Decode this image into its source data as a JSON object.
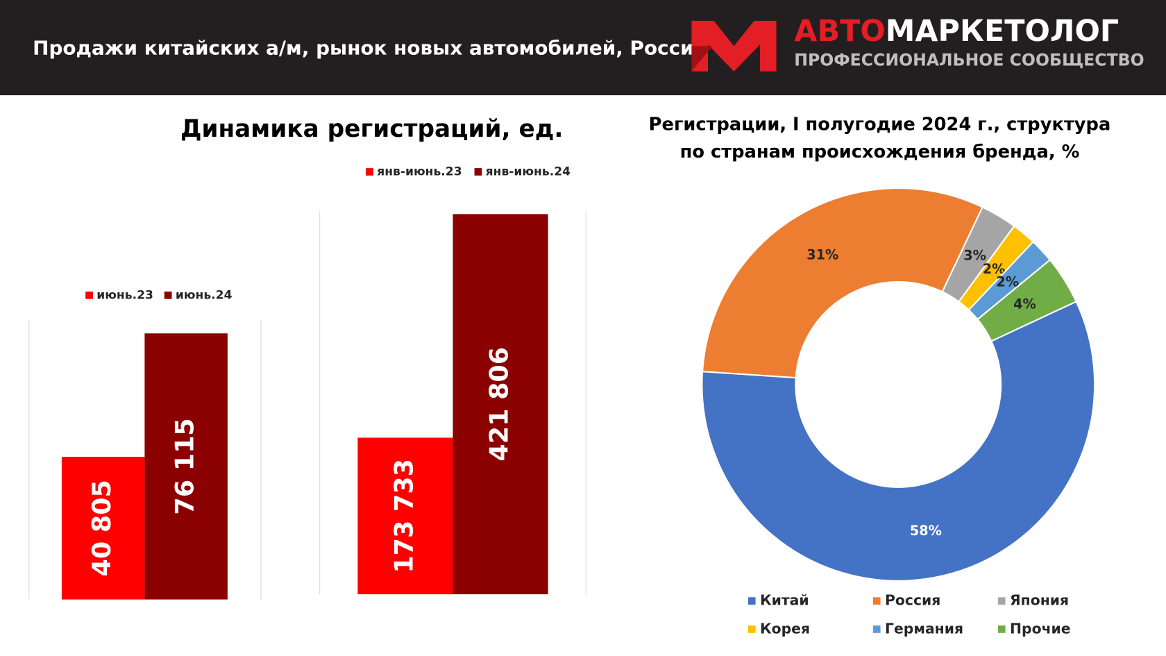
{
  "header": {
    "title": "Продажи китайских а/м, рынок новых автомобилей, Россия",
    "logo_red": "АВТО",
    "logo_white": "МАРКЕТОЛОГ",
    "logo_sub": "ПРОФЕССИОНАЛЬНОЕ СООБЩЕСТВО"
  },
  "chart_data": [
    {
      "type": "bar",
      "title": "Динамика регистраций, ед.",
      "categories": [
        null
      ],
      "ylim": [
        0,
        80000
      ],
      "series": [
        {
          "name": "июнь.23",
          "color": "#ff0000",
          "values": [
            40805
          ],
          "value_labels": [
            "40 805"
          ]
        },
        {
          "name": "июнь.24",
          "color": "#8b0000",
          "values": [
            76115
          ],
          "value_labels": [
            "76 115"
          ]
        }
      ]
    },
    {
      "type": "bar",
      "categories": [
        null
      ],
      "ylim": [
        0,
        425000
      ],
      "series": [
        {
          "name": "янв-июнь.23",
          "color": "#ff0000",
          "values": [
            173733
          ],
          "value_labels": [
            "173 733"
          ]
        },
        {
          "name": "янв-июнь.24",
          "color": "#8b0000",
          "values": [
            421806
          ],
          "value_labels": [
            "421 806"
          ]
        }
      ]
    },
    {
      "type": "pie",
      "title": [
        "Регистрации, I полугодие 2024 г., структура",
        "по странам происхождения бренда, %"
      ],
      "categories": [
        "Китай",
        "Россия",
        "Япония",
        "Корея",
        "Германия",
        "Прочие"
      ],
      "values": [
        58,
        31,
        3,
        2,
        2,
        4
      ],
      "value_labels": [
        "58%",
        "31%",
        "3%",
        "2%",
        "2%",
        "4%"
      ],
      "colors": [
        "#4472c4",
        "#ed7d31",
        "#a5a5a5",
        "#ffc000",
        "#5b9bd5",
        "#70ad47"
      ]
    }
  ]
}
